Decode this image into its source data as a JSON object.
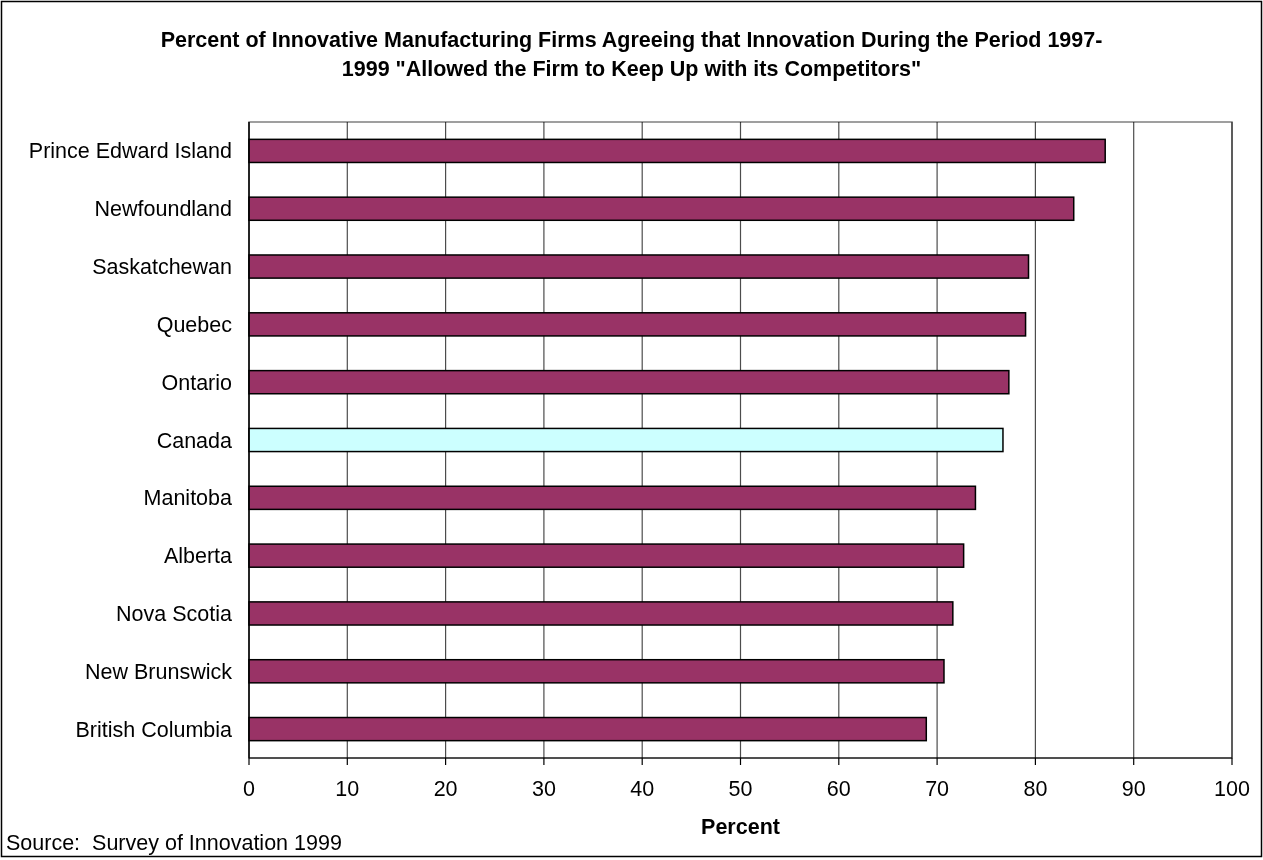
{
  "chart_data": {
    "type": "bar",
    "orientation": "horizontal",
    "title": "Percent of Innovative Manufacturing Firms Agreeing that Innovation During the Period 1997-\n1999 \"Allowed the Firm to Keep Up with its Competitors\"",
    "categories": [
      "Prince Edward Island",
      "Newfoundland",
      "Saskatchewan",
      "Quebec",
      "Ontario",
      "Canada",
      "Manitoba",
      "Alberta",
      "Nova Scotia",
      "New Brunswick",
      "British Columbia"
    ],
    "values": [
      87.1,
      83.9,
      79.3,
      79.0,
      77.3,
      76.7,
      73.9,
      72.7,
      71.6,
      70.7,
      68.9
    ],
    "colors": [
      "#993366",
      "#993366",
      "#993366",
      "#993366",
      "#993366",
      "#ccffff",
      "#993366",
      "#993366",
      "#993366",
      "#993366",
      "#993366"
    ],
    "xlim": [
      0,
      100
    ],
    "xticks": [
      0,
      10,
      20,
      30,
      40,
      50,
      60,
      70,
      80,
      90,
      100
    ],
    "grid": "x",
    "xlabel": "Percent",
    "annotations": [
      "Source:  Survey of Innovation 1999"
    ]
  }
}
